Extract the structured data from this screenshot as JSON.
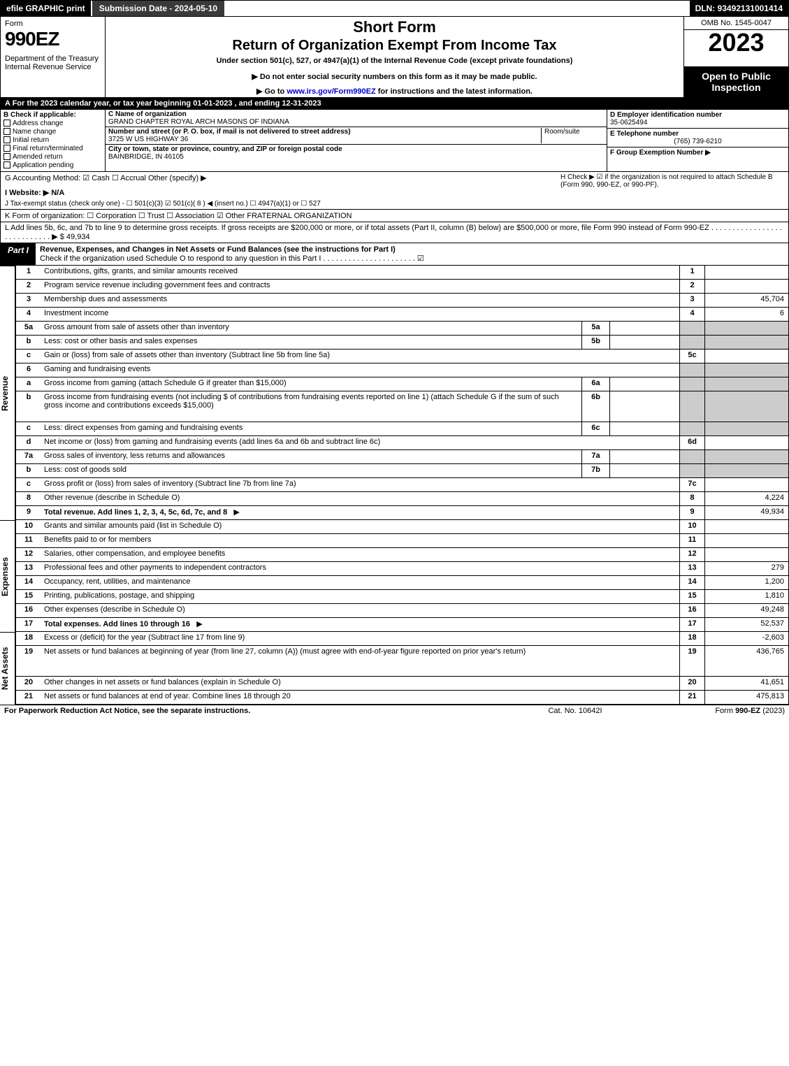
{
  "topbar": {
    "efile": "efile GRAPHIC print",
    "subdate": "Submission Date - 2024-05-10",
    "dln": "DLN: 93492131001414"
  },
  "head": {
    "form": "Form",
    "num": "990EZ",
    "dept": "Department of the Treasury\nInternal Revenue Service",
    "sf": "Short Form",
    "rt": "Return of Organization Exempt From Income Tax",
    "us": "Under section 501(c), 527, or 4947(a)(1) of the Internal Revenue Code (except private foundations)",
    "note1": "▶ Do not enter social security numbers on this form as it may be made public.",
    "note2": "▶ Go to www.irs.gov/Form990EZ for instructions and the latest information.",
    "omb": "OMB No. 1545-0047",
    "year": "2023",
    "open": "Open to Public Inspection"
  },
  "rowA": "A  For the 2023 calendar year, or tax year beginning 01-01-2023 , and ending 12-31-2023",
  "B": {
    "hdr": "B  Check if applicable:",
    "items": [
      "Address change",
      "Name change",
      "Initial return",
      "Final return/terminated",
      "Amended return",
      "Application pending"
    ]
  },
  "C": {
    "namehdr": "C Name of organization",
    "name": "GRAND CHAPTER ROYAL ARCH MASONS OF INDIANA",
    "streethdr": "Number and street (or P. O. box, if mail is not delivered to street address)",
    "room": "Room/suite",
    "street": "3725 W US HIGHWAY 36",
    "cityhdr": "City or town, state or province, country, and ZIP or foreign postal code",
    "city": "BAINBRIDGE, IN  46105"
  },
  "D": {
    "hdr": "D Employer identification number",
    "val": "35-0625494"
  },
  "E": {
    "hdr": "E Telephone number",
    "val": "(765) 739-6210"
  },
  "F": {
    "hdr": "F Group Exemption Number  ▶",
    "val": ""
  },
  "G": "G Accounting Method:   ☑ Cash  ☐ Accrual   Other (specify) ▶",
  "H": "H   Check ▶ ☑ if the organization is not required to attach Schedule B (Form 990, 990-EZ, or 990-PF).",
  "I": "I Website: ▶ N/A",
  "J": "J Tax-exempt status (check only one) - ☐ 501(c)(3) ☑ 501(c)( 8 ) ◀ (insert no.) ☐ 4947(a)(1) or ☐ 527",
  "K": "K Form of organization:  ☐ Corporation  ☐ Trust  ☐ Association  ☑ Other FRATERNAL ORGANIZATION",
  "L": "L Add lines 5b, 6c, and 7b to line 9 to determine gross receipts. If gross receipts are $200,000 or more, or if total assets (Part II, column (B) below) are $500,000 or more, file Form 990 instead of Form 990-EZ  .  .  .  .  .  .  .  .  .  .  .  .  .  .  .  .  .  .  .  .  .  .  .  .  .  .  .  .  ▶ $ 49,934",
  "partI": {
    "tab": "Part I",
    "title": "Revenue, Expenses, and Changes in Net Assets or Fund Balances (see the instructions for Part I)",
    "check": "Check if the organization used Schedule O to respond to any question in this Part I  .  .  .  .  .  .  .  .  .  .  .  .  .  .  .  .  .  .  .  .  .  .  ☑"
  },
  "revenue": [
    {
      "n": "1",
      "d": "Contributions, gifts, grants, and similar amounts received",
      "rn": "1",
      "v": ""
    },
    {
      "n": "2",
      "d": "Program service revenue including government fees and contracts",
      "rn": "2",
      "v": ""
    },
    {
      "n": "3",
      "d": "Membership dues and assessments",
      "rn": "3",
      "v": "45,704"
    },
    {
      "n": "4",
      "d": "Investment income",
      "rn": "4",
      "v": "6"
    },
    {
      "n": "5a",
      "d": "Gross amount from sale of assets other than inventory",
      "in": "5a",
      "iv": "",
      "shade": true
    },
    {
      "n": "b",
      "d": "Less: cost or other basis and sales expenses",
      "in": "5b",
      "iv": "",
      "shade": true
    },
    {
      "n": "c",
      "d": "Gain or (loss) from sale of assets other than inventory (Subtract line 5b from line 5a)",
      "rn": "5c",
      "v": ""
    },
    {
      "n": "6",
      "d": "Gaming and fundraising events",
      "shade": true,
      "noright": true
    },
    {
      "n": "a",
      "d": "Gross income from gaming (attach Schedule G if greater than $15,000)",
      "in": "6a",
      "iv": "",
      "shade": true
    },
    {
      "n": "b",
      "d": "Gross income from fundraising events (not including $                of contributions from fundraising events reported on line 1) (attach Schedule G if the sum of such gross income and contributions exceeds $15,000)",
      "in": "6b",
      "iv": "",
      "shade": true,
      "tall": true
    },
    {
      "n": "c",
      "d": "Less: direct expenses from gaming and fundraising events",
      "in": "6c",
      "iv": "",
      "shade": true
    },
    {
      "n": "d",
      "d": "Net income or (loss) from gaming and fundraising events (add lines 6a and 6b and subtract line 6c)",
      "rn": "6d",
      "v": ""
    },
    {
      "n": "7a",
      "d": "Gross sales of inventory, less returns and allowances",
      "in": "7a",
      "iv": "",
      "shade": true
    },
    {
      "n": "b",
      "d": "Less: cost of goods sold",
      "in": "7b",
      "iv": "",
      "shade": true
    },
    {
      "n": "c",
      "d": "Gross profit or (loss) from sales of inventory (Subtract line 7b from line 7a)",
      "rn": "7c",
      "v": ""
    },
    {
      "n": "8",
      "d": "Other revenue (describe in Schedule O)",
      "rn": "8",
      "v": "4,224"
    },
    {
      "n": "9",
      "d": "Total revenue. Add lines 1, 2, 3, 4, 5c, 6d, 7c, and 8",
      "rn": "9",
      "v": "49,934",
      "bold": true,
      "arrow": true
    }
  ],
  "expenses": [
    {
      "n": "10",
      "d": "Grants and similar amounts paid (list in Schedule O)",
      "rn": "10",
      "v": ""
    },
    {
      "n": "11",
      "d": "Benefits paid to or for members",
      "rn": "11",
      "v": ""
    },
    {
      "n": "12",
      "d": "Salaries, other compensation, and employee benefits",
      "rn": "12",
      "v": ""
    },
    {
      "n": "13",
      "d": "Professional fees and other payments to independent contractors",
      "rn": "13",
      "v": "279"
    },
    {
      "n": "14",
      "d": "Occupancy, rent, utilities, and maintenance",
      "rn": "14",
      "v": "1,200"
    },
    {
      "n": "15",
      "d": "Printing, publications, postage, and shipping",
      "rn": "15",
      "v": "1,810"
    },
    {
      "n": "16",
      "d": "Other expenses (describe in Schedule O)",
      "rn": "16",
      "v": "49,248"
    },
    {
      "n": "17",
      "d": "Total expenses. Add lines 10 through 16",
      "rn": "17",
      "v": "52,537",
      "bold": true,
      "arrow": true
    }
  ],
  "netassets": [
    {
      "n": "18",
      "d": "Excess or (deficit) for the year (Subtract line 17 from line 9)",
      "rn": "18",
      "v": "-2,603"
    },
    {
      "n": "19",
      "d": "Net assets or fund balances at beginning of year (from line 27, column (A)) (must agree with end-of-year figure reported on prior year's return)",
      "rn": "19",
      "v": "436,765",
      "tall": true
    },
    {
      "n": "20",
      "d": "Other changes in net assets or fund balances (explain in Schedule O)",
      "rn": "20",
      "v": "41,651"
    },
    {
      "n": "21",
      "d": "Net assets or fund balances at end of year. Combine lines 18 through 20",
      "rn": "21",
      "v": "475,813"
    }
  ],
  "sidelabels": {
    "rev": "Revenue",
    "exp": "Expenses",
    "na": "Net Assets"
  },
  "footer": {
    "l": "For Paperwork Reduction Act Notice, see the separate instructions.",
    "m": "Cat. No. 10642I",
    "r": "Form 990-EZ (2023)"
  }
}
